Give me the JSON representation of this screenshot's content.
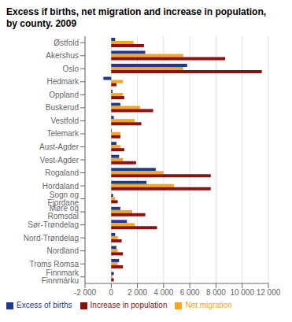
{
  "chart_data": {
    "type": "bar",
    "orientation": "horizontal",
    "title": "Excess if births, net migration and increase in population,\nby county. 2009",
    "categories": [
      "Østfold",
      "Akershus",
      "Oslo",
      "Hedmark",
      "Oppland",
      "Buskerud",
      "Vestfold",
      "Telemark",
      "Aust-Agder",
      "Vest-Agder",
      "Rogaland",
      "Hordaland",
      "Sogn og Fjordane",
      "Møre og Romsdal",
      "Sør-Trøndelag",
      "Nord-Trøndelag",
      "Nordland",
      "Troms Romsa",
      "Finnmark Finnmárku"
    ],
    "series": [
      {
        "name": "Excess of births",
        "color": "#1f3a8c",
        "values": [
          300,
          2600,
          5800,
          -600,
          100,
          700,
          200,
          50,
          400,
          600,
          3400,
          2700,
          150,
          700,
          1200,
          300,
          400,
          600,
          200
        ]
      },
      {
        "name": "Net migration",
        "color": "#f5a623",
        "values": [
          1700,
          5500,
          5500,
          900,
          900,
          2200,
          1800,
          700,
          700,
          900,
          4000,
          4800,
          300,
          1600,
          1800,
          500,
          500,
          500,
          100
        ]
      },
      {
        "name": "Increase in population",
        "color": "#8b1010",
        "values": [
          2500,
          8700,
          11500,
          400,
          1000,
          3200,
          2300,
          700,
          1000,
          1900,
          7600,
          7600,
          500,
          2600,
          3500,
          800,
          900,
          900,
          200
        ]
      }
    ],
    "xlim": [
      -2000,
      12000
    ],
    "xticks": [
      {
        "value": -2000,
        "label": "-2 000"
      },
      0,
      {
        "value": 2000,
        "label": "2 000"
      },
      {
        "value": 4000,
        "label": "4 000"
      },
      {
        "value": 6000,
        "label": "6 000"
      },
      {
        "value": 8000,
        "label": "8 000"
      },
      {
        "value": 10000,
        "label": "10 000"
      },
      {
        "value": 12000,
        "label": "12 000"
      }
    ],
    "grid": true,
    "legend": "bottom"
  }
}
